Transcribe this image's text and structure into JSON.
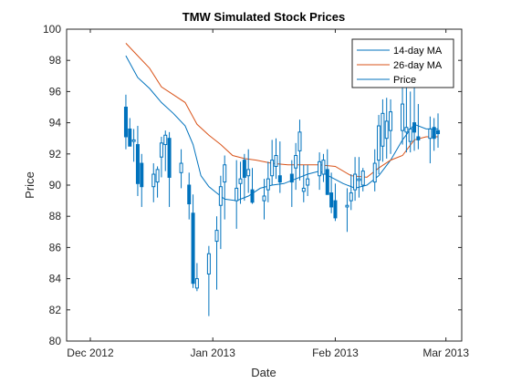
{
  "chart_data": {
    "type": "line",
    "title": "TMW Simulated Stock Prices",
    "xlabel": "Date",
    "ylabel": "Price",
    "x_ticks": [
      "Dec 2012",
      "Jan 2013",
      "Feb 2013",
      "Mar 2013"
    ],
    "y_ticks": [
      "80",
      "82",
      "84",
      "86",
      "88",
      "90",
      "92",
      "94",
      "96",
      "98",
      "100"
    ],
    "xlim": [
      "2012-11-25",
      "2013-03-05"
    ],
    "ylim": [
      80,
      100
    ],
    "grid": false,
    "legend_position": "top-right",
    "legend": [
      "14-day MA",
      "26-day MA",
      "Price"
    ],
    "series": [
      {
        "name": "14-day MA",
        "color": "#0072BD",
        "x": [
          "2012-12-10",
          "2012-12-13",
          "2012-12-16",
          "2012-12-19",
          "2012-12-22",
          "2012-12-25",
          "2012-12-27",
          "2012-12-29",
          "2012-12-31",
          "2013-01-02",
          "2013-01-04",
          "2013-01-07",
          "2013-01-10",
          "2013-01-13",
          "2013-01-16",
          "2013-01-19",
          "2013-01-22",
          "2013-01-25",
          "2013-01-28",
          "2013-01-31",
          "2013-02-03",
          "2013-02-06",
          "2013-02-09",
          "2013-02-12",
          "2013-02-15",
          "2013-02-18",
          "2013-02-21",
          "2013-02-24",
          "2013-02-27"
        ],
        "values": [
          98.3,
          96.9,
          96.2,
          95.3,
          94.6,
          93.8,
          92.6,
          90.6,
          89.9,
          89.5,
          89.1,
          89.0,
          89.3,
          89.8,
          90.0,
          90.1,
          90.4,
          90.7,
          90.9,
          90.5,
          90.1,
          89.8,
          90.0,
          90.6,
          91.6,
          92.9,
          93.9,
          93.6,
          93.6
        ]
      },
      {
        "name": "26-day MA",
        "color": "#D95319",
        "x": [
          "2012-12-10",
          "2012-12-13",
          "2012-12-16",
          "2012-12-19",
          "2012-12-22",
          "2012-12-25",
          "2012-12-28",
          "2012-12-31",
          "2013-01-03",
          "2013-01-06",
          "2013-01-09",
          "2013-01-12",
          "2013-01-16",
          "2013-01-20",
          "2013-01-24",
          "2013-01-28",
          "2013-02-01",
          "2013-02-05",
          "2013-02-09",
          "2013-02-12",
          "2013-02-15",
          "2013-02-18",
          "2013-02-21",
          "2013-02-24",
          "2013-02-27"
        ],
        "values": [
          99.1,
          98.3,
          97.5,
          96.3,
          95.8,
          95.3,
          93.9,
          93.2,
          92.6,
          91.9,
          91.7,
          91.6,
          91.4,
          91.3,
          91.3,
          91.3,
          91.2,
          90.6,
          90.5,
          91.1,
          91.6,
          91.9,
          92.9,
          93.1,
          93.1
        ]
      },
      {
        "name": "Price",
        "color": "#0072BD",
        "type": "candlestick",
        "x": [
          "2012-12-10",
          "2012-12-11",
          "2012-12-12",
          "2012-12-13",
          "2012-12-14",
          "2012-12-17",
          "2012-12-18",
          "2012-12-19",
          "2012-12-20",
          "2012-12-21",
          "2012-12-24",
          "2012-12-26",
          "2012-12-27",
          "2012-12-28",
          "2012-12-31",
          "2013-01-02",
          "2013-01-03",
          "2013-01-04",
          "2013-01-07",
          "2013-01-08",
          "2013-01-09",
          "2013-01-10",
          "2013-01-11",
          "2013-01-14",
          "2013-01-15",
          "2013-01-16",
          "2013-01-17",
          "2013-01-18",
          "2013-01-21",
          "2013-01-22",
          "2013-01-23",
          "2013-01-24",
          "2013-01-25",
          "2013-01-28",
          "2013-01-29",
          "2013-01-30",
          "2013-01-31",
          "2013-02-01",
          "2013-02-04",
          "2013-02-05",
          "2013-02-06",
          "2013-02-07",
          "2013-02-08",
          "2013-02-11",
          "2013-02-12",
          "2013-02-13",
          "2013-02-14",
          "2013-02-15",
          "2013-02-18",
          "2013-02-19",
          "2013-02-20",
          "2013-02-21",
          "2013-02-22",
          "2013-02-25",
          "2013-02-26",
          "2013-02-27"
        ],
        "open": [
          95.0,
          93.6,
          92.8,
          92.6,
          91.4,
          89.9,
          90.2,
          91.8,
          92.6,
          93.0,
          90.8,
          90.0,
          88.2,
          83.4,
          84.3,
          86.4,
          88.7,
          90.2,
          89.0,
          90.1,
          91.6,
          90.6,
          89.7,
          89.0,
          89.7,
          90.6,
          91.2,
          90.6,
          90.7,
          91.1,
          92.2,
          89.6,
          90.0,
          90.6,
          90.7,
          91.0,
          89.5,
          89.0,
          88.6,
          89.0,
          89.7,
          90.3,
          90.0,
          90.2,
          91.6,
          92.5,
          93.0,
          93.5,
          93.5,
          93.4,
          92.8,
          94.0,
          93.1,
          93.0,
          93.7,
          93.5
        ],
        "high": [
          95.8,
          94.3,
          93.6,
          93.8,
          92.0,
          91.4,
          91.2,
          93.1,
          93.5,
          93.4,
          92.3,
          90.8,
          89.4,
          85.0,
          86.1,
          88.0,
          90.6,
          91.9,
          91.6,
          91.5,
          92.0,
          92.3,
          91.1,
          90.4,
          91.5,
          92.9,
          93.0,
          92.8,
          91.6,
          92.7,
          94.2,
          91.3,
          91.3,
          92.1,
          92.0,
          92.3,
          90.8,
          90.1,
          89.8,
          90.7,
          91.8,
          91.8,
          91.1,
          92.3,
          94.5,
          95.5,
          95.6,
          95.5,
          96.5,
          96.4,
          96.0,
          96.6,
          95.2,
          94.4,
          94.3,
          94.6
        ],
        "low": [
          92.3,
          92.6,
          91.5,
          89.3,
          88.6,
          88.9,
          89.2,
          90.5,
          90.9,
          88.6,
          89.8,
          87.8,
          83.4,
          83.2,
          81.6,
          83.3,
          85.9,
          87.8,
          87.2,
          88.8,
          89.0,
          89.5,
          88.8,
          87.8,
          88.9,
          90.0,
          90.4,
          89.5,
          88.6,
          89.7,
          90.3,
          88.9,
          89.3,
          89.7,
          90.2,
          89.4,
          88.2,
          87.7,
          87.0,
          88.4,
          89.0,
          89.2,
          89.6,
          89.6,
          90.7,
          91.5,
          91.7,
          92.0,
          92.6,
          92.1,
          92.1,
          92.2,
          92.3,
          91.4,
          92.2,
          92.4
        ],
        "close": [
          93.1,
          92.5,
          92.9,
          90.1,
          89.9,
          90.7,
          91.0,
          92.7,
          93.2,
          90.5,
          91.4,
          88.8,
          83.7,
          84.0,
          85.6,
          87.1,
          89.9,
          91.3,
          89.8,
          90.4,
          90.5,
          91.0,
          88.9,
          89.3,
          90.4,
          91.6,
          91.9,
          90.2,
          90.2,
          91.9,
          93.4,
          89.8,
          90.4,
          91.5,
          91.6,
          89.4,
          88.6,
          87.9,
          88.7,
          89.5,
          90.7,
          90.4,
          90.9,
          91.4,
          93.8,
          94.6,
          94.1,
          94.7,
          95.2,
          93.7,
          93.6,
          93.4,
          92.9,
          93.6,
          93.0,
          93.3
        ]
      }
    ]
  }
}
